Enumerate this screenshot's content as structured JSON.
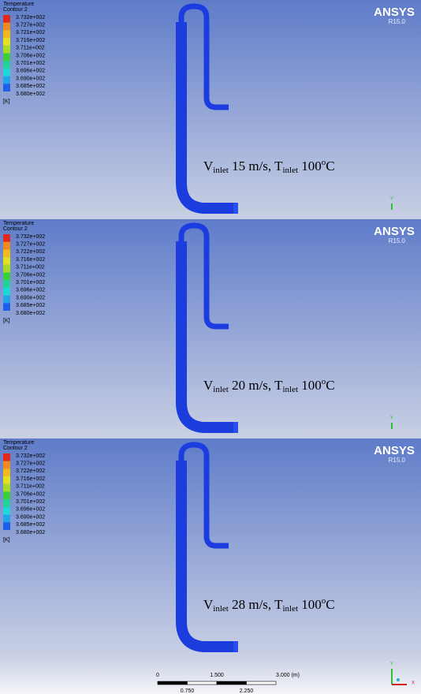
{
  "panels": [
    {
      "legend": {
        "title": "Temperature",
        "subtitle": "Contour 2",
        "levels": [
          "3.732e+002",
          "3.727e+002",
          "3.721e+002",
          "3.716e+002",
          "3.711e+002",
          "3.706e+002",
          "3.701e+002",
          "3.696e+002",
          "3.690e+002",
          "3.685e+002",
          "3.680e+002"
        ],
        "unit": "[K]"
      },
      "logo": "ANSYS",
      "version": "R15.0",
      "axis_label": "Y",
      "caption": [
        {
          "text": "V"
        },
        {
          "text": "inlet",
          "style": "sub"
        },
        {
          "text": " 15 m/s, T"
        },
        {
          "text": "inlet",
          "style": "sub"
        },
        {
          "text": " 100"
        },
        {
          "text": "o",
          "style": "sup"
        },
        {
          "text": "C"
        }
      ]
    },
    {
      "legend": {
        "title": "Temperature",
        "subtitle": "Contour 2",
        "levels": [
          "3.732e+002",
          "3.727e+002",
          "3.722e+002",
          "3.716e+002",
          "3.711e+002",
          "3.706e+002",
          "3.701e+002",
          "3.696e+002",
          "3.690e+002",
          "3.685e+002",
          "3.680e+002"
        ],
        "unit": "[K]"
      },
      "logo": "ANSYS",
      "version": "R15.0",
      "axis_label": "Y",
      "caption": [
        {
          "text": "V"
        },
        {
          "text": "inlet",
          "style": "sub"
        },
        {
          "text": " 20 m/s, T"
        },
        {
          "text": "inlet",
          "style": "sub"
        },
        {
          "text": " 100"
        },
        {
          "text": "o",
          "style": "sup"
        },
        {
          "text": "C"
        }
      ]
    },
    {
      "legend": {
        "title": "Temperature",
        "subtitle": "Contour 2",
        "levels": [
          "3.732e+002",
          "3.727e+002",
          "3.722e+002",
          "3.716e+002",
          "3.711e+002",
          "3.706e+002",
          "3.701e+002",
          "3.696e+002",
          "3.690e+002",
          "3.685e+002",
          "3.680e+002"
        ],
        "unit": "[K]"
      },
      "logo": "ANSYS",
      "version": "R15.0",
      "axis_label": "Y",
      "caption": [
        {
          "text": "V"
        },
        {
          "text": "inlet",
          "style": "sub"
        },
        {
          "text": " 28  m/s, T"
        },
        {
          "text": "inlet",
          "style": "sub"
        },
        {
          "text": " 100"
        },
        {
          "text": "o",
          "style": "sup"
        },
        {
          "text": "C"
        }
      ]
    }
  ],
  "legend_colors": [
    "#e2281a",
    "#f08a1e",
    "#f2b81c",
    "#e3e21c",
    "#a6dc22",
    "#3ccf3c",
    "#22d29a",
    "#1ed8d8",
    "#23a4ea",
    "#1f5ee8",
    "#1a2fd8"
  ],
  "scale_bar": {
    "top_labels": [
      "0",
      "1.500",
      "3.000 (m)"
    ],
    "bottom_labels": [
      "0.750",
      "2.250"
    ]
  },
  "x_axis_label": "X"
}
